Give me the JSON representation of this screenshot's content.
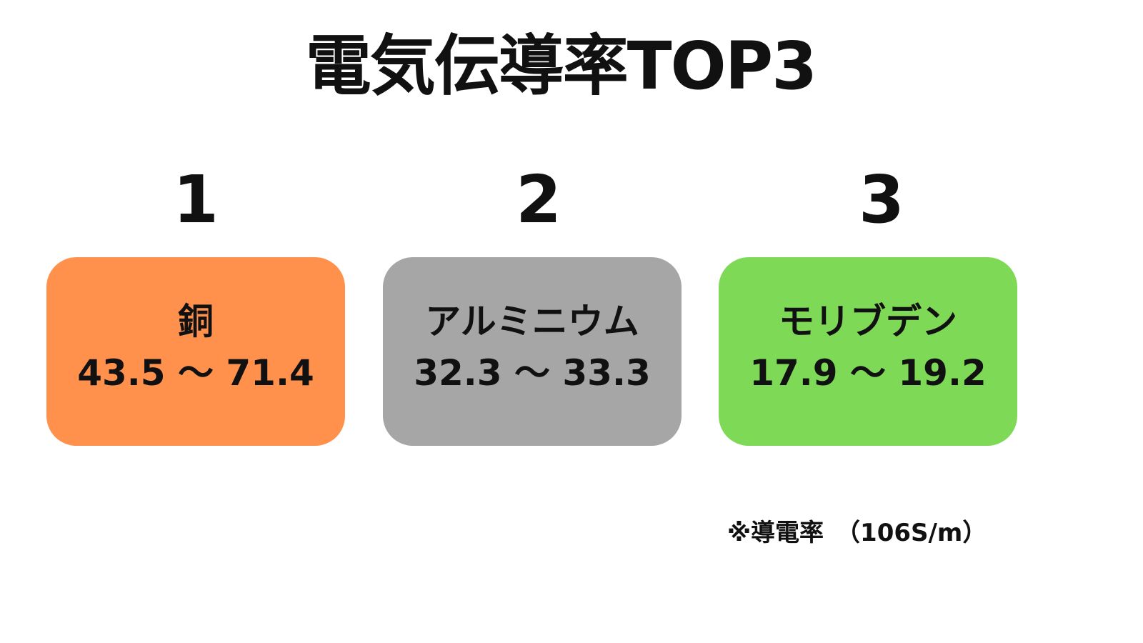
{
  "title": "電気伝導率TOP3",
  "items": [
    {
      "rank": "1",
      "name": "銅",
      "range": "43.5 〜 71.4",
      "color": "#FF914D"
    },
    {
      "rank": "2",
      "name": "アルミニウム",
      "range": "32.3 〜 33.3",
      "color": "#A6A6A6"
    },
    {
      "rank": "3",
      "name": "モリブデン",
      "range": "17.9 〜 19.2",
      "color": "#7ED957"
    }
  ],
  "note": "※導電率　（106S/m）"
}
